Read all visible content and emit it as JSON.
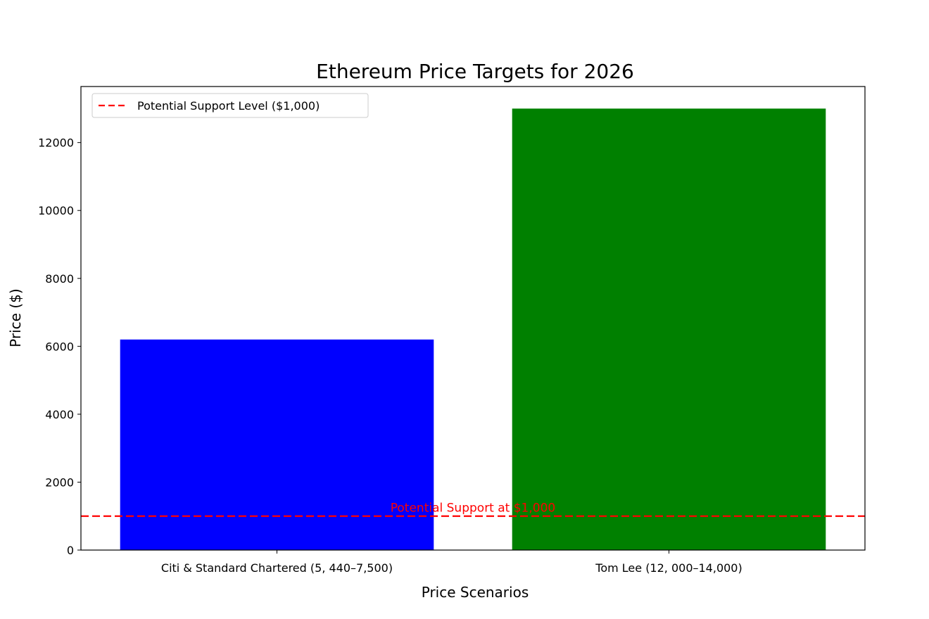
{
  "chart_data": {
    "type": "bar",
    "title": "Ethereum Price Targets for 2026",
    "xlabel": "Price Scenarios",
    "ylabel": "Price ($)",
    "categories": [
      "Citi & Standard Chartered (5, 440–7,500)",
      "Tom Lee (12, 000–14,000)"
    ],
    "values": [
      6200,
      13000
    ],
    "colors": [
      "#0000ff",
      "#008000"
    ],
    "ylim": [
      0,
      13650
    ],
    "yticks": [
      0,
      2000,
      4000,
      6000,
      8000,
      10000,
      12000
    ],
    "grid": false,
    "hline": {
      "value": 1000,
      "color": "#ff0000",
      "style": "dashed",
      "label": "Potential Support Level ($1,000)"
    },
    "annotation": {
      "text": "Potential Support at $1,000",
      "x": 0.5,
      "y": 1000,
      "color": "#ff0000"
    },
    "legend": {
      "position": "top-left",
      "entries": [
        "Potential Support Level ($1,000)"
      ]
    }
  }
}
